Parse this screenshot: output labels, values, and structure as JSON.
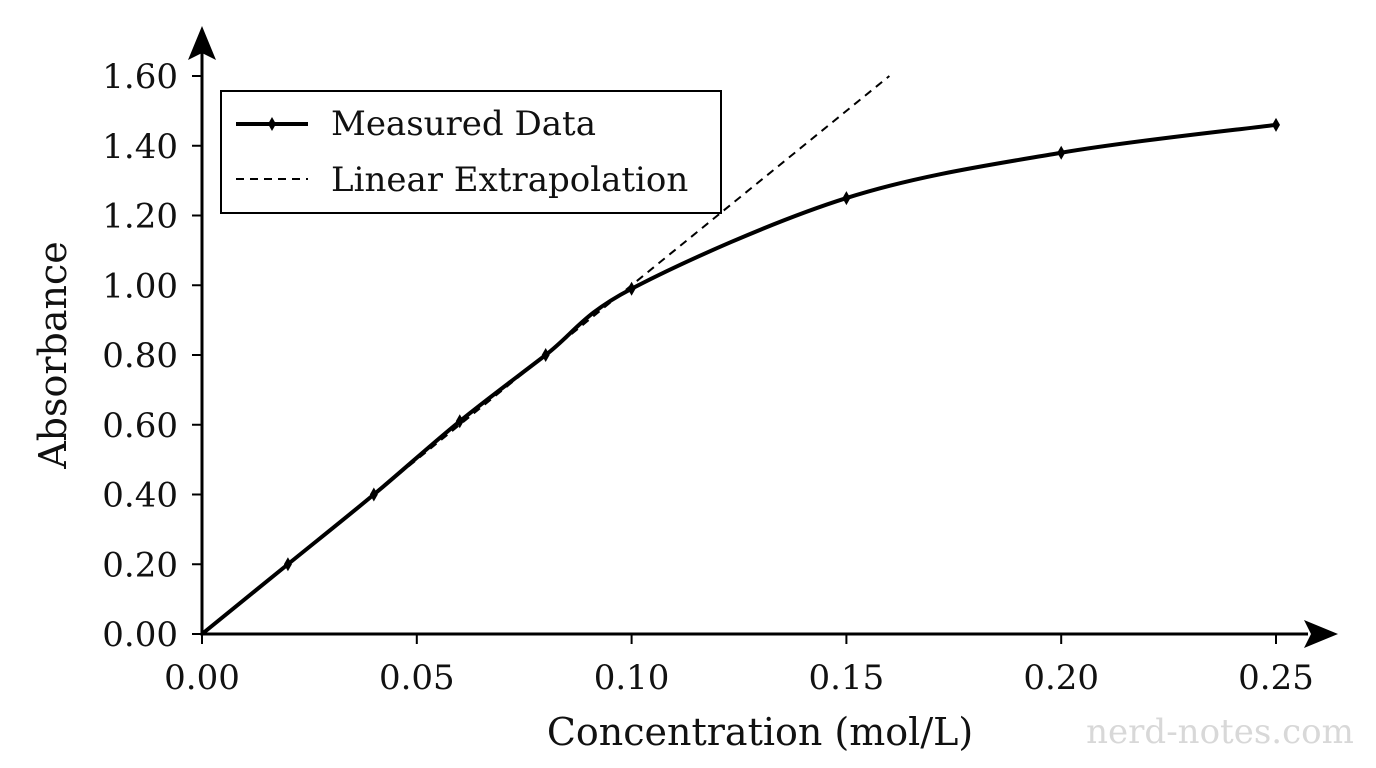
{
  "chart_data": {
    "type": "line",
    "xlabel": "Concentration (mol/L)",
    "ylabel": "Absorbance",
    "xlim": [
      0,
      0.25
    ],
    "ylim": [
      0,
      1.6
    ],
    "x_ticks": [
      "0.00",
      "0.05",
      "0.10",
      "0.15",
      "0.20",
      "0.25"
    ],
    "y_ticks": [
      "0.00",
      "0.20",
      "0.40",
      "0.60",
      "0.80",
      "1.00",
      "1.20",
      "1.40",
      "1.60"
    ],
    "legend_position": "top-left",
    "grid": false,
    "series": [
      {
        "name": "Measured Data",
        "style": "solid",
        "marker": "diamond",
        "points": [
          {
            "x": 0.0,
            "y": 0.0
          },
          {
            "x": 0.02,
            "y": 0.2
          },
          {
            "x": 0.04,
            "y": 0.4
          },
          {
            "x": 0.06,
            "y": 0.61
          },
          {
            "x": 0.08,
            "y": 0.8
          },
          {
            "x": 0.1,
            "y": 0.99
          },
          {
            "x": 0.15,
            "y": 1.25
          },
          {
            "x": 0.2,
            "y": 1.38
          },
          {
            "x": 0.25,
            "y": 1.46
          }
        ]
      },
      {
        "name": "Linear Extrapolation",
        "style": "dashed",
        "points": [
          {
            "x": 0.0,
            "y": 0.0
          },
          {
            "x": 0.16,
            "y": 1.6
          }
        ]
      }
    ]
  },
  "watermark": "nerd-notes.com"
}
